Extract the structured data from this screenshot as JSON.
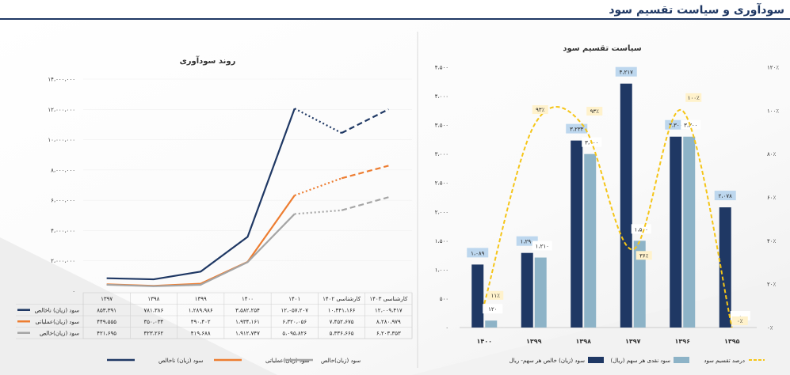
{
  "page_title": "سودآوری و سیاست تقسیم سود",
  "chart_data": [
    {
      "type": "line",
      "title": "روند سودآوری",
      "categories": [
        "۱۳۹۷",
        "۱۳۹۸",
        "۱۳۹۹",
        "۱۴۰۰",
        "۱۴۰۱",
        "کارشناسی ۱۴۰۲",
        "کارشناسی ۱۴۰۳"
      ],
      "y_ticks": [
        "۰",
        "۲،۰۰۰،۰۰۰",
        "۴،۰۰۰،۰۰۰",
        "۶،۰۰۰،۰۰۰",
        "۸،۰۰۰،۰۰۰",
        "۱۰،۰۰۰،۰۰۰",
        "۱۲،۰۰۰،۰۰۰",
        "۱۴،۰۰۰،۰۰۰"
      ],
      "ylim": [
        0,
        14000000
      ],
      "series": [
        {
          "name": "سود (زیان) ناخالص",
          "color": "#1f3864",
          "values": [
            853391,
            781386,
            1289986,
            3582254,
            12057207,
            10441166,
            12009417
          ],
          "labels": [
            "۸۵۳،۳۹۱",
            "۷۸۱،۳۸۶",
            "۱،۲۸۹،۹۸۶",
            "۳،۵۸۲،۲۵۴",
            "۱۲،۰۵۷،۲۰۷",
            "۱۰،۴۴۱،۱۶۶",
            "۱۲،۰۰۹،۴۱۷"
          ]
        },
        {
          "name": "سود (زیان)عملیاتی",
          "color": "#ed7d31",
          "values": [
            449555,
            350034,
            490402,
            1934161,
            6320056,
            7452675,
            8280979
          ],
          "labels": [
            "۴۴۹،۵۵۵",
            "۳۵۰،۰۳۴",
            "۴۹۰،۴۰۲",
            "۱،۹۳۴،۱۶۱",
            "۶،۳۲۰،۰۵۶",
            "۷،۴۵۲،۶۷۵",
            "۸،۲۸۰،۹۷۹"
          ]
        },
        {
          "name": "سود (زیان)خالص",
          "color": "#a5a5a5",
          "values": [
            421695,
            323262,
            419688,
            1912747,
            5095826,
            5336665,
            6203353
          ],
          "labels": [
            "۴۲۱،۶۹۵",
            "۳۲۳،۲۶۲",
            "۴۱۹،۶۸۸",
            "۱،۹۱۲،۷۴۷",
            "۵،۰۹۵،۸۲۶",
            "۵،۳۳۶،۶۶۵",
            "۶،۲۰۳،۳۵۳"
          ]
        }
      ]
    },
    {
      "type": "bar",
      "title": "سیاست تقسیم سود",
      "categories": [
        "۱۴۰۰",
        "۱۳۹۹",
        "۱۳۹۸",
        "۱۳۹۷",
        "۱۳۹۶",
        "۱۳۹۵"
      ],
      "y_left_ticks": [
        "۰",
        "۵۰۰",
        "۱،۰۰۰",
        "۱،۵۰۰",
        "۲،۰۰۰",
        "۲،۵۰۰",
        "۳،۰۰۰",
        "۳،۵۰۰",
        "۴،۰۰۰",
        "۴،۵۰۰"
      ],
      "y_right_ticks": [
        "۰٪",
        "۲۰٪",
        "۴۰٪",
        "۶۰٪",
        "۸۰٪",
        "۱۰۰٪",
        "۱۲۰٪"
      ],
      "ylim": [
        0,
        4500
      ],
      "y2lim": [
        0,
        120
      ],
      "series": [
        {
          "name": "سود (زیان) خالص هر سهم- ریال",
          "color": "#1f3864",
          "values": [
            1089,
            1290,
            3233,
            4217,
            3300,
            2078
          ],
          "labels": [
            "۱،۰۸۹",
            "۱،۲۹۰",
            "۳،۲۳۳",
            "۴،۲۱۷",
            "۳،۳۰۰",
            "۲،۰۷۸"
          ]
        },
        {
          "name": "سود نقدی هر سهم (ریال)",
          "color": "#8db3c7",
          "values": [
            120,
            1210,
            3000,
            1500,
            3300,
            0
          ],
          "labels": [
            "۱۲۰",
            "۱،۲۱۰",
            "۳،۰۰۰",
            "۱،۵۰۰",
            "۳،۳۰۰",
            "۰"
          ]
        },
        {
          "name": "درصد تقسیم سود",
          "color": "#f5c518",
          "values": [
            11,
            93,
            93,
            36,
            100,
            0
          ],
          "labels": [
            "۱۱٪",
            "۹۳٪",
            "۹۳٪",
            "۳۶٪",
            "۱۰۰٪",
            "۰٪"
          ]
        }
      ]
    }
  ]
}
